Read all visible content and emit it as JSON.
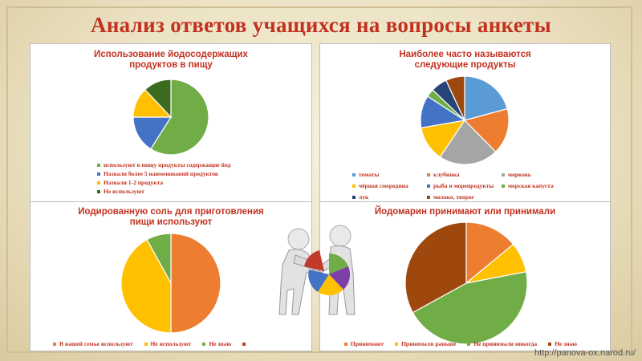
{
  "slide": {
    "title": "Анализ ответов учащихся на вопросы анкеты",
    "url": "http://panova-ox.narod.ru/"
  },
  "chart_data": [
    {
      "type": "pie",
      "title": "Использование йодосодержащих продуктов в пищу",
      "categories": [
        "используют в пищу продукты содержащие йод",
        "Назвали более 5 наименований продуктов",
        "Назвали 1-2 продукта",
        "Не используют"
      ],
      "values": [
        59,
        16,
        13,
        12
      ],
      "colors": [
        "#70ad47",
        "#4472c4",
        "#ffc000",
        "#3a6b1e"
      ],
      "legend": "bottom"
    },
    {
      "type": "pie",
      "title": "Наиболее часто называются следующие продукты",
      "categories": [
        "томаты",
        "клубника",
        "морковь",
        "чёрная смородина",
        "рыба и морепродукты",
        "морская капуста",
        "лук",
        "молоко, творог"
      ],
      "values": [
        21,
        17,
        22,
        13,
        12,
        3,
        6,
        7
      ],
      "colors": [
        "#5b9bd5",
        "#ed7d31",
        "#a5a5a5",
        "#ffc000",
        "#4472c4",
        "#70ad47",
        "#264478",
        "#9e480e"
      ],
      "legend": "bottom"
    },
    {
      "type": "pie",
      "title": "Иодированную соль для приготовления пищи используют",
      "categories": [
        "В нашей семье используют",
        "Не используют",
        "Не знаю",
        ""
      ],
      "values": [
        50,
        42,
        8,
        0
      ],
      "colors": [
        "#ed7d31",
        "#ffc000",
        "#70ad47",
        "#c0392b"
      ],
      "legend": "bottom"
    },
    {
      "type": "pie",
      "title": "Йодомарин принимают или принимали",
      "categories": [
        "Принимают",
        "Принимали раньше",
        "Не принимали никогда",
        "Не знаю"
      ],
      "values": [
        14,
        8,
        45,
        33
      ],
      "colors": [
        "#ed7d31",
        "#ffc000",
        "#70ad47",
        "#9e480e"
      ],
      "legend": "bottom"
    }
  ]
}
